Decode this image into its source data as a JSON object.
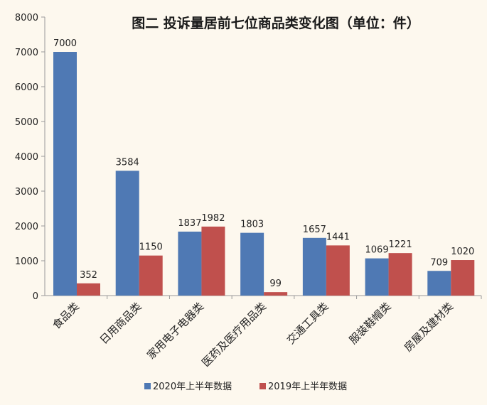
{
  "chart_data": {
    "type": "bar",
    "title": "图二    投诉量居前七位商品类变化图（单位：件）",
    "xlabel": "",
    "ylabel": "",
    "ylim": [
      0,
      8000
    ],
    "yticks": [
      0,
      1000,
      2000,
      3000,
      4000,
      5000,
      6000,
      7000,
      8000
    ],
    "grid": false,
    "legend_position": "bottom",
    "categories": [
      "食品类",
      "日用商品类",
      "家用电子电器类",
      "医药及医疗用品类",
      "交通工具类",
      "服装鞋帽类",
      "房屋及建材类"
    ],
    "series": [
      {
        "name": "2020年上半年数据",
        "color": "#4f79b4",
        "values": [
          7000,
          3584,
          1837,
          1803,
          1657,
          1069,
          709
        ]
      },
      {
        "name": "2019年上半年数据",
        "color": "#c0504d",
        "values": [
          352,
          1150,
          1982,
          99,
          1441,
          1221,
          1020
        ]
      }
    ]
  }
}
